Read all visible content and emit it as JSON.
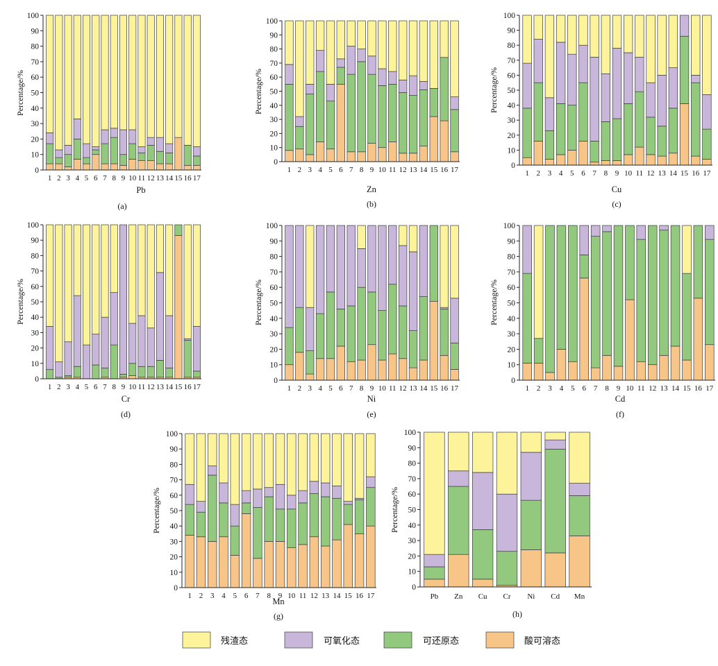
{
  "legend": {
    "items": [
      {
        "label": "残渣态",
        "color": "#FDF39A"
      },
      {
        "label": "可氧化态",
        "color": "#C9B7DB"
      },
      {
        "label": "可还原态",
        "color": "#92C97E"
      },
      {
        "label": "酸可溶态",
        "color": "#F7C587"
      }
    ]
  },
  "chart_data": [
    {
      "panel_label": "(a)",
      "type": "bar",
      "stacked": true,
      "xlabel": "Pb",
      "ylabel": "Percentage/%",
      "ylim": [
        0,
        100
      ],
      "yticks": [
        "0",
        "10",
        "20",
        "30",
        "40",
        "50",
        "60",
        "70",
        "80",
        "90",
        "100"
      ],
      "categories": [
        "1",
        "2",
        "3",
        "4",
        "5",
        "6",
        "7",
        "8",
        "9",
        "10",
        "11",
        "12",
        "13",
        "14",
        "15",
        "16",
        "17"
      ],
      "series": [
        {
          "name": "酸可溶态",
          "values": [
            4,
            4,
            2,
            7,
            4,
            10,
            4,
            4,
            3,
            7,
            6,
            6,
            4,
            4,
            21,
            3,
            3
          ]
        },
        {
          "name": "可还原态",
          "values": [
            13,
            4,
            8,
            13,
            4,
            3,
            13,
            17,
            7,
            10,
            5,
            10,
            8,
            7,
            0,
            13,
            6
          ]
        },
        {
          "name": "可氧化态",
          "values": [
            7,
            5,
            6,
            13,
            9,
            2,
            9,
            6,
            16,
            9,
            4,
            5,
            9,
            6,
            0,
            0,
            6
          ]
        },
        {
          "name": "残渣态",
          "values": [
            76,
            87,
            84,
            67,
            83,
            85,
            74,
            73,
            74,
            74,
            85,
            79,
            79,
            83,
            79,
            84,
            85
          ]
        }
      ]
    },
    {
      "panel_label": "(b)",
      "type": "bar",
      "stacked": true,
      "xlabel": "Zn",
      "ylabel": "Percentage/%",
      "ylim": [
        0,
        100
      ],
      "yticks": [
        "0",
        "10",
        "20",
        "30",
        "40",
        "50",
        "60",
        "70",
        "80",
        "90",
        "100"
      ],
      "categories": [
        "1",
        "2",
        "3",
        "4",
        "5",
        "6",
        "7",
        "8",
        "9",
        "10",
        "11",
        "12",
        "13",
        "14",
        "15",
        "16",
        "17"
      ],
      "series": [
        {
          "name": "酸可溶态",
          "values": [
            8,
            9,
            5,
            14,
            9,
            55,
            7,
            7,
            13,
            10,
            14,
            6,
            6,
            11,
            32,
            29,
            7
          ]
        },
        {
          "name": "可还原态",
          "values": [
            47,
            16,
            43,
            50,
            34,
            12,
            55,
            64,
            49,
            44,
            41,
            43,
            41,
            40,
            20,
            45,
            30
          ]
        },
        {
          "name": "可氧化态",
          "values": [
            14,
            7,
            7,
            15,
            12,
            6,
            20,
            9,
            13,
            12,
            9,
            9,
            14,
            6,
            0,
            0,
            9
          ]
        },
        {
          "name": "残渣态",
          "values": [
            31,
            68,
            45,
            21,
            45,
            27,
            18,
            20,
            25,
            34,
            36,
            42,
            39,
            43,
            48,
            26,
            54
          ]
        }
      ]
    },
    {
      "panel_label": "(c)",
      "type": "bar",
      "stacked": true,
      "xlabel": "Cu",
      "ylabel": "Percentage/%",
      "ylim": [
        0,
        100
      ],
      "yticks": [
        "0",
        "10",
        "20",
        "30",
        "40",
        "50",
        "60",
        "70",
        "80",
        "90",
        "100"
      ],
      "categories": [
        "1",
        "2",
        "3",
        "4",
        "5",
        "6",
        "7",
        "8",
        "9",
        "10",
        "11",
        "12",
        "13",
        "14",
        "15",
        "16",
        "17"
      ],
      "series": [
        {
          "name": "酸可溶态",
          "values": [
            5,
            16,
            4,
            7,
            10,
            16,
            2,
            3,
            3,
            7,
            12,
            7,
            6,
            8,
            41,
            6,
            4
          ]
        },
        {
          "name": "可还原态",
          "values": [
            33,
            39,
            19,
            34,
            30,
            39,
            14,
            26,
            28,
            34,
            37,
            25,
            20,
            30,
            45,
            49,
            20
          ]
        },
        {
          "name": "可氧化态",
          "values": [
            30,
            29,
            22,
            41,
            34,
            25,
            56,
            32,
            47,
            34,
            23,
            23,
            34,
            27,
            14,
            5,
            23
          ]
        },
        {
          "name": "残渣态",
          "values": [
            32,
            16,
            55,
            18,
            26,
            20,
            28,
            39,
            22,
            25,
            28,
            45,
            40,
            35,
            0,
            40,
            53
          ]
        }
      ]
    },
    {
      "panel_label": "(d)",
      "type": "bar",
      "stacked": true,
      "xlabel": "Cr",
      "ylabel": "Percentage/%",
      "ylim": [
        0,
        100
      ],
      "yticks": [
        "0",
        "10",
        "20",
        "30",
        "40",
        "50",
        "60",
        "70",
        "80",
        "90",
        "100"
      ],
      "categories": [
        "1",
        "2",
        "3",
        "4",
        "5",
        "6",
        "7",
        "8",
        "9",
        "10",
        "11",
        "12",
        "13",
        "14",
        "15",
        "16",
        "17"
      ],
      "series": [
        {
          "name": "酸可溶态",
          "values": [
            0,
            0,
            1,
            1,
            0,
            0,
            1,
            0,
            1,
            2,
            1,
            1,
            1,
            1,
            93,
            1,
            1
          ]
        },
        {
          "name": "可还原态",
          "values": [
            6,
            1,
            1,
            7,
            0,
            9,
            6,
            22,
            2,
            8,
            7,
            7,
            11,
            6,
            7,
            24,
            4
          ]
        },
        {
          "name": "可氧化态",
          "values": [
            28,
            10,
            22,
            46,
            22,
            20,
            33,
            34,
            97,
            26,
            33,
            25,
            57,
            34,
            0,
            1,
            29
          ]
        },
        {
          "name": "残渣态",
          "values": [
            66,
            89,
            76,
            46,
            78,
            71,
            60,
            44,
            0,
            64,
            59,
            67,
            31,
            59,
            0,
            74,
            66
          ]
        }
      ]
    },
    {
      "panel_label": "(e)",
      "type": "bar",
      "stacked": true,
      "xlabel": "Ni",
      "ylabel": "Percentage/%",
      "ylim": [
        0,
        100
      ],
      "yticks": [
        "0",
        "10",
        "20",
        "30",
        "40",
        "50",
        "60",
        "70",
        "80",
        "90",
        "100"
      ],
      "categories": [
        "1",
        "2",
        "3",
        "4",
        "5",
        "6",
        "7",
        "8",
        "9",
        "10",
        "11",
        "12",
        "13",
        "14",
        "15",
        "16",
        "17"
      ],
      "series": [
        {
          "name": "酸可溶态",
          "values": [
            10,
            18,
            4,
            14,
            14,
            22,
            12,
            13,
            23,
            13,
            17,
            14,
            8,
            13,
            51,
            16,
            7
          ]
        },
        {
          "name": "可还原态",
          "values": [
            24,
            29,
            15,
            29,
            43,
            24,
            36,
            47,
            34,
            32,
            45,
            34,
            24,
            41,
            49,
            30,
            17
          ]
        },
        {
          "name": "可氧化态",
          "values": [
            66,
            53,
            28,
            57,
            43,
            54,
            52,
            25,
            43,
            55,
            38,
            39,
            51,
            46,
            0,
            1,
            29
          ]
        },
        {
          "name": "残渣态",
          "values": [
            0,
            0,
            53,
            0,
            0,
            0,
            0,
            15,
            0,
            0,
            0,
            13,
            17,
            0,
            0,
            53,
            47
          ]
        }
      ]
    },
    {
      "panel_label": "(f)",
      "type": "bar",
      "stacked": true,
      "xlabel": "Cd",
      "ylabel": "Percentage/%",
      "ylim": [
        0,
        100
      ],
      "yticks": [
        "0",
        "10",
        "20",
        "30",
        "40",
        "50",
        "60",
        "70",
        "80",
        "90",
        "100"
      ],
      "categories": [
        "1",
        "2",
        "3",
        "4",
        "5",
        "6",
        "7",
        "8",
        "9",
        "10",
        "11",
        "12",
        "13",
        "14",
        "15",
        "16",
        "17"
      ],
      "series": [
        {
          "name": "酸可溶态",
          "values": [
            11,
            11,
            5,
            20,
            12,
            66,
            8,
            16,
            9,
            52,
            12,
            10,
            16,
            22,
            13,
            53,
            23
          ]
        },
        {
          "name": "可还原态",
          "values": [
            58,
            16,
            95,
            80,
            88,
            15,
            85,
            80,
            91,
            48,
            79,
            90,
            81,
            78,
            56,
            47,
            68
          ]
        },
        {
          "name": "可氧化态",
          "values": [
            31,
            0,
            0,
            0,
            0,
            19,
            7,
            4,
            0,
            0,
            9,
            0,
            3,
            0,
            0,
            0,
            9
          ]
        },
        {
          "name": "残渣态",
          "values": [
            0,
            73,
            0,
            0,
            0,
            0,
            0,
            0,
            0,
            0,
            0,
            0,
            0,
            0,
            31,
            0,
            0
          ]
        }
      ]
    },
    {
      "panel_label": "(g)",
      "type": "bar",
      "stacked": true,
      "xlabel": "Mn",
      "ylabel": "Percentage/%",
      "ylim": [
        0,
        100
      ],
      "yticks": [
        "0",
        "10",
        "20",
        "30",
        "40",
        "50",
        "60",
        "70",
        "80",
        "90",
        "100"
      ],
      "categories": [
        "1",
        "2",
        "3",
        "4",
        "5",
        "6",
        "7",
        "8",
        "9",
        "10",
        "11",
        "12",
        "13",
        "14",
        "15",
        "16",
        "17"
      ],
      "series": [
        {
          "name": "酸可溶态",
          "values": [
            34,
            33,
            30,
            33,
            21,
            48,
            19,
            30,
            30,
            26,
            28,
            33,
            27,
            31,
            41,
            35,
            40
          ]
        },
        {
          "name": "可还原态",
          "values": [
            20,
            16,
            43,
            22,
            19,
            7,
            33,
            29,
            21,
            25,
            27,
            28,
            32,
            27,
            13,
            22,
            25
          ]
        },
        {
          "name": "可氧化态",
          "values": [
            13,
            7,
            6,
            13,
            14,
            8,
            12,
            6,
            16,
            9,
            8,
            8,
            9,
            8,
            2,
            1,
            7
          ]
        },
        {
          "name": "残渣态",
          "values": [
            33,
            44,
            21,
            32,
            46,
            37,
            36,
            35,
            33,
            40,
            37,
            31,
            32,
            34,
            44,
            42,
            28
          ]
        }
      ]
    },
    {
      "panel_label": "(h)",
      "type": "bar",
      "stacked": true,
      "ylabel": "Percentage/%",
      "ylim": [
        0,
        100
      ],
      "yticks": [
        "0",
        "10",
        "20",
        "30",
        "40",
        "50",
        "60",
        "70",
        "80",
        "90",
        "100"
      ],
      "categories": [
        "Pb",
        "Zn",
        "Cu",
        "Cr",
        "Ni",
        "Cd",
        "Mn"
      ],
      "series": [
        {
          "name": "酸可溶态",
          "values": [
            5,
            21,
            5,
            1,
            24,
            22,
            33
          ]
        },
        {
          "name": "可还原态",
          "values": [
            8,
            44,
            32,
            22,
            32,
            67,
            26
          ]
        },
        {
          "name": "可氧化态",
          "values": [
            8,
            10,
            37,
            37,
            31,
            6,
            8
          ]
        },
        {
          "name": "残渣态",
          "values": [
            79,
            25,
            26,
            40,
            13,
            5,
            33
          ]
        }
      ]
    }
  ]
}
